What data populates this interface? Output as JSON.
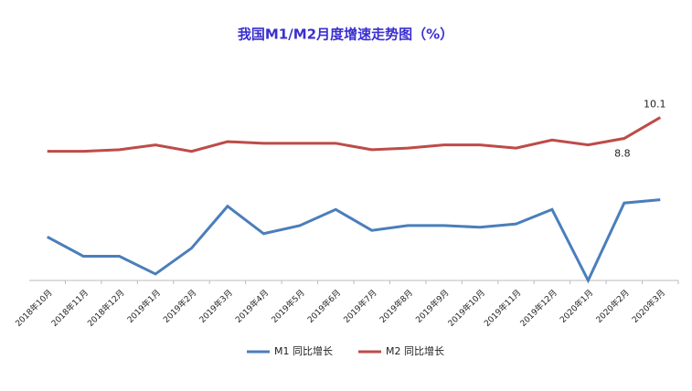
{
  "chart_data": {
    "type": "line",
    "title": "我国M1/M2月度增速走势图（%）",
    "categories": [
      "2018年10月",
      "2018年11月",
      "2018年12月",
      "2019年1月",
      "2019年2月",
      "2019年3月",
      "2019年4月",
      "2019年5月",
      "2019年6月",
      "2019年7月",
      "2019年8月",
      "2019年9月",
      "2019年10月",
      "2019年11月",
      "2019年12月",
      "2020年1月",
      "2020年2月",
      "2020年3月"
    ],
    "series": [
      {
        "name": "M1 同比增长",
        "color": "#4a7ebb",
        "values": [
          2.7,
          1.5,
          1.5,
          0.4,
          2.0,
          4.6,
          2.9,
          3.4,
          4.4,
          3.1,
          3.4,
          3.4,
          3.3,
          3.5,
          4.4,
          0.0,
          4.8,
          5.0
        ]
      },
      {
        "name": "M2 同比增长",
        "color": "#be4b48",
        "values": [
          8.0,
          8.0,
          8.1,
          8.4,
          8.0,
          8.6,
          8.5,
          8.5,
          8.5,
          8.1,
          8.2,
          8.4,
          8.4,
          8.2,
          8.7,
          8.4,
          8.8,
          10.1
        ],
        "value_labels": [
          null,
          null,
          null,
          null,
          null,
          null,
          null,
          null,
          null,
          null,
          null,
          null,
          null,
          null,
          null,
          null,
          "8.8",
          "10.1"
        ]
      }
    ],
    "ylim": [
      0,
      12
    ],
    "legend": "bottom"
  }
}
